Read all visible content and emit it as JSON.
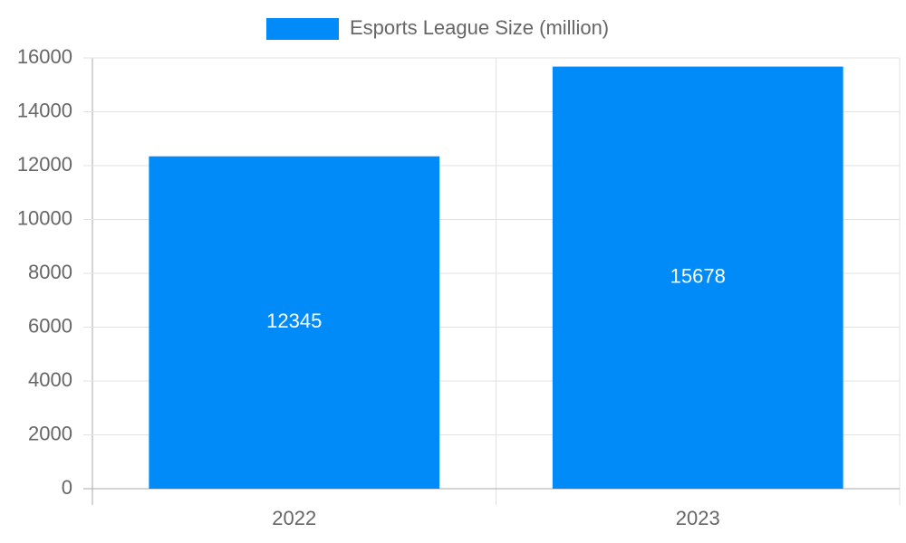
{
  "chart_data": {
    "type": "bar",
    "categories": [
      "2022",
      "2023"
    ],
    "series": [
      {
        "name": "Esports League Size (million)",
        "color": "#008bf8",
        "values": [
          12345,
          15678
        ]
      }
    ],
    "ylim": [
      0,
      16000
    ],
    "yticks": [
      0,
      2000,
      4000,
      6000,
      8000,
      10000,
      12000,
      14000,
      16000
    ],
    "grid": true,
    "legend": "top",
    "data_labels": true
  }
}
